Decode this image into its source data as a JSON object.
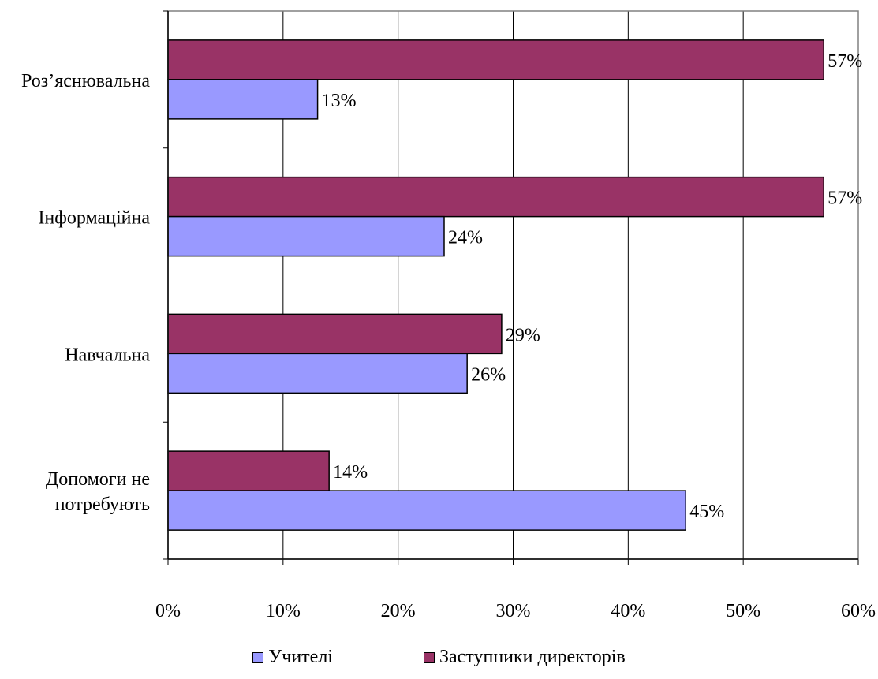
{
  "chart_data": {
    "type": "bar",
    "orientation": "horizontal",
    "categories": [
      "Роз’яснювальна",
      "Інформаційна",
      "Навчальна",
      "Допомоги не потребують"
    ],
    "series": [
      {
        "name": "Заступники директорів",
        "values": [
          57,
          57,
          29,
          14
        ],
        "labels": [
          "57%",
          "57%",
          "29%",
          "14%"
        ],
        "color": "#993366"
      },
      {
        "name": "Учителі",
        "values": [
          13,
          24,
          26,
          45
        ],
        "labels": [
          "13%",
          "24%",
          "26%",
          "45%"
        ],
        "color": "#9999ff"
      }
    ],
    "xlim": [
      0,
      60
    ],
    "xticks": [
      "0%",
      "10%",
      "20%",
      "30%",
      "40%",
      "50%",
      "60%"
    ],
    "grid": "vertical",
    "legend_position": "bottom",
    "legend": [
      "Учителі",
      "Заступники директорів"
    ]
  }
}
